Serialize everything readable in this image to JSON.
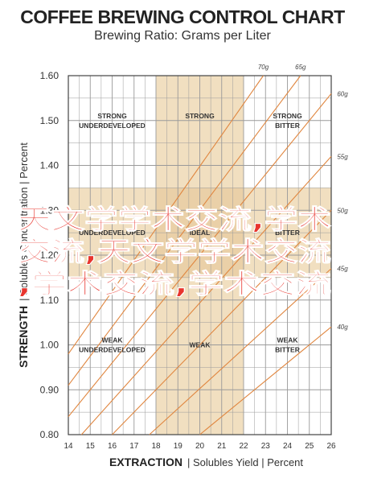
{
  "chart_data": {
    "type": "line",
    "title": "COFFEE BREWING CONTROL CHART",
    "subtitle": "Brewing Ratio: Grams per Liter",
    "ylabel": {
      "strong": "STRENGTH",
      "rest": "| Solubles Concentration | Percent"
    },
    "xlabel": {
      "strong": "EXTRACTION",
      "rest": "| Solubles Yield | Percent"
    },
    "xlim": [
      14,
      26
    ],
    "ylim": [
      0.8,
      1.6
    ],
    "x_ticks": [
      "14",
      "15",
      "16",
      "17",
      "18",
      "19",
      "20",
      "21",
      "22",
      "23",
      "24",
      "25",
      "26"
    ],
    "y_ticks": [
      "0.80",
      "0.90",
      "1.00",
      "1.10",
      "1.20",
      "1.30",
      "1.40",
      "1.50",
      "1.60"
    ],
    "ideal_band": {
      "x": [
        18,
        22
      ],
      "y": [
        1.15,
        1.35
      ]
    },
    "grid": true,
    "series": [
      {
        "name": "70g",
        "x": [
          14,
          22.9
        ],
        "y": [
          0.98,
          1.6
        ]
      },
      {
        "name": "65g",
        "x": [
          14,
          24.6
        ],
        "y": [
          0.91,
          1.6
        ]
      },
      {
        "name": "60g",
        "x": [
          14,
          26
        ],
        "y": [
          0.84,
          1.56
        ]
      },
      {
        "name": "55g",
        "x": [
          14.6,
          26
        ],
        "y": [
          0.8,
          1.42
        ]
      },
      {
        "name": "50g",
        "x": [
          16,
          26
        ],
        "y": [
          0.8,
          1.3
        ]
      },
      {
        "name": "45g",
        "x": [
          17.7,
          26
        ],
        "y": [
          0.8,
          1.17
        ]
      },
      {
        "name": "40g",
        "x": [
          20,
          26
        ],
        "y": [
          0.8,
          1.04
        ]
      }
    ],
    "zone_labels": [
      {
        "lines": [
          "STRONG",
          "UNDERDEVELOPED"
        ],
        "x": 16,
        "y": 1.5
      },
      {
        "lines": [
          "STRONG"
        ],
        "x": 20,
        "y": 1.51
      },
      {
        "lines": [
          "STRONG",
          "BITTER"
        ],
        "x": 24,
        "y": 1.5
      },
      {
        "lines": [
          "UNDERDEVELOPED"
        ],
        "x": 16,
        "y": 1.25
      },
      {
        "lines": [
          "IDEAL"
        ],
        "x": 20,
        "y": 1.25
      },
      {
        "lines": [
          "BITTER"
        ],
        "x": 24,
        "y": 1.25
      },
      {
        "lines": [
          "WEAK",
          "UNDERDEVELOPED"
        ],
        "x": 16,
        "y": 1.0
      },
      {
        "lines": [
          "WEAK"
        ],
        "x": 20,
        "y": 1.0
      },
      {
        "lines": [
          "WEAK",
          "BITTER"
        ],
        "x": 24,
        "y": 1.0
      }
    ]
  },
  "overlay_text": [
    "天文学学术交流,学术",
    "交流,天文学学术交流",
    ",学术交流,学术交流"
  ],
  "colors": {
    "band": "#f1dfc0",
    "ideal": "#ead0a8",
    "grid": "#9a9a9a",
    "line": "#e0863f",
    "overlay": "#e8352e"
  }
}
